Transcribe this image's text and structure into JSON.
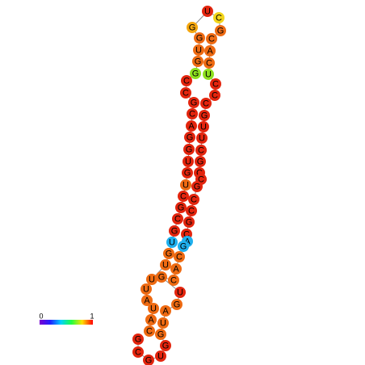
{
  "nodes": [
    {
      "label": "C",
      "color": "#ee6a12"
    },
    {
      "label": "A",
      "color": "#ee6a12"
    },
    {
      "label": "U",
      "color": "#ee6a12"
    },
    {
      "label": "A",
      "color": "#ee6a12"
    },
    {
      "label": "U",
      "color": "#ee6a12"
    },
    {
      "label": "U",
      "color": "#ee6a12"
    },
    {
      "label": "U",
      "color": "#ee6a12"
    },
    {
      "label": "G",
      "color": "#ee6a12"
    },
    {
      "label": "U",
      "color": "#1fb0ee"
    },
    {
      "label": "G",
      "color": "#e3250e"
    },
    {
      "label": "C",
      "color": "#e3250e"
    },
    {
      "label": "G",
      "color": "#e3250e"
    },
    {
      "label": "C",
      "color": "#e3250e"
    },
    {
      "label": "U",
      "color": "#ee6a12"
    },
    {
      "label": "G",
      "color": "#e3250e"
    },
    {
      "label": "U",
      "color": "#e3250e"
    },
    {
      "label": "G",
      "color": "#e3250e"
    },
    {
      "label": "G",
      "color": "#e3250e"
    },
    {
      "label": "A",
      "color": "#e3250e"
    },
    {
      "label": "C",
      "color": "#e3250e"
    },
    {
      "label": "G",
      "color": "#e3250e"
    },
    {
      "label": "C",
      "color": "#e3250e"
    },
    {
      "label": "C",
      "color": "#e3250e"
    },
    {
      "label": "G",
      "color": "#8ee01f"
    },
    {
      "label": "G",
      "color": "#ee6a12"
    },
    {
      "label": "U",
      "color": "#ee6a12"
    },
    {
      "label": "G",
      "color": "#ee6a12"
    },
    {
      "label": "G",
      "color": "#f5a70f"
    },
    {
      "label": "U",
      "color": "#e3250e"
    },
    {
      "label": "C",
      "color": "#f2d41a"
    },
    {
      "label": "G",
      "color": "#ee6a12"
    },
    {
      "label": "C",
      "color": "#ee6a12"
    },
    {
      "label": "A",
      "color": "#ee6a12"
    },
    {
      "label": "C",
      "color": "#ee6a12"
    },
    {
      "label": "U",
      "color": "#8ee01f"
    },
    {
      "label": "C",
      "color": "#e3250e"
    },
    {
      "label": "C",
      "color": "#e3250e"
    },
    {
      "label": "C",
      "color": "#e3250e"
    },
    {
      "label": "G",
      "color": "#e3250e"
    },
    {
      "label": "U",
      "color": "#e3250e"
    },
    {
      "label": "U",
      "color": "#e3250e"
    },
    {
      "label": "C",
      "color": "#e3250e"
    },
    {
      "label": "G",
      "color": "#e3250e"
    },
    {
      "label": "C",
      "color": "#e3250e"
    },
    {
      "label": "C",
      "color": "#e3250e"
    },
    {
      "label": "G",
      "color": "#e3250e"
    },
    {
      "label": "C",
      "color": "#e3250e"
    },
    {
      "label": "C",
      "color": "#e3250e"
    },
    {
      "label": "G",
      "color": "#e3250e"
    },
    {
      "label": "C",
      "color": "#e3250e"
    },
    {
      "label": "A",
      "color": "#1fb0ee"
    },
    {
      "label": "G",
      "color": "#1fb0ee"
    },
    {
      "label": "C",
      "color": "#ee6a12"
    },
    {
      "label": "A",
      "color": "#ee6a12"
    },
    {
      "label": "C",
      "color": "#ee6a12"
    },
    {
      "label": "G",
      "color": "#ee6a12"
    },
    {
      "label": "U",
      "color": "#e3250e"
    },
    {
      "label": "G",
      "color": "#ee6a12"
    },
    {
      "label": "A",
      "color": "#ee6a12"
    },
    {
      "label": "U",
      "color": "#ee6a12"
    },
    {
      "label": "G",
      "color": "#ee6a12"
    },
    {
      "label": "G",
      "color": "#e3250e"
    },
    {
      "label": "U",
      "color": "#e3250e"
    },
    {
      "label": "G",
      "color": "#e3250e"
    },
    {
      "label": "C",
      "color": "#e3250e"
    },
    {
      "label": "G",
      "color": "#e3250e"
    }
  ],
  "color_scale": {
    "min_label": "0",
    "max_label": "1"
  }
}
